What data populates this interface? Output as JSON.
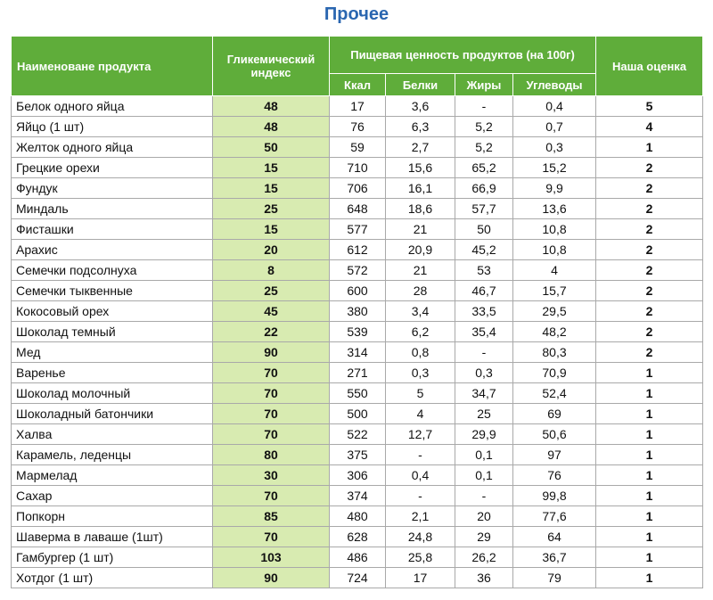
{
  "page": {
    "title": "Прочее"
  },
  "table": {
    "headers": {
      "name": "Наименоване продукта",
      "gi": "Гликемический индекс",
      "nutrition": "Пищевая ценность продуктов (на 100г)",
      "kcal": "Ккал",
      "protein": "Белки",
      "fat": "Жиры",
      "carbs": "Углеводы",
      "rating": "Наша оценка"
    },
    "rows": [
      {
        "name": "Белок одного яйца",
        "gi": "48",
        "kcal": "17",
        "protein": "3,6",
        "fat": "-",
        "carbs": "0,4",
        "rating": "5"
      },
      {
        "name": "Яйцо (1 шт)",
        "gi": "48",
        "kcal": "76",
        "protein": "6,3",
        "fat": "5,2",
        "carbs": "0,7",
        "rating": "4"
      },
      {
        "name": "Желток одного яйца",
        "gi": "50",
        "kcal": "59",
        "protein": "2,7",
        "fat": "5,2",
        "carbs": "0,3",
        "rating": "1"
      },
      {
        "name": "Грецкие орехи",
        "gi": "15",
        "kcal": "710",
        "protein": "15,6",
        "fat": "65,2",
        "carbs": "15,2",
        "rating": "2"
      },
      {
        "name": "Фундук",
        "gi": "15",
        "kcal": "706",
        "protein": "16,1",
        "fat": "66,9",
        "carbs": "9,9",
        "rating": "2"
      },
      {
        "name": "Миндаль",
        "gi": "25",
        "kcal": "648",
        "protein": "18,6",
        "fat": "57,7",
        "carbs": "13,6",
        "rating": "2"
      },
      {
        "name": "Фисташки",
        "gi": "15",
        "kcal": "577",
        "protein": "21",
        "fat": "50",
        "carbs": "10,8",
        "rating": "2"
      },
      {
        "name": "Арахис",
        "gi": "20",
        "kcal": "612",
        "protein": "20,9",
        "fat": "45,2",
        "carbs": "10,8",
        "rating": "2"
      },
      {
        "name": "Семечки подсолнуха",
        "gi": "8",
        "kcal": "572",
        "protein": "21",
        "fat": "53",
        "carbs": "4",
        "rating": "2"
      },
      {
        "name": "Семечки тыквенные",
        "gi": "25",
        "kcal": "600",
        "protein": "28",
        "fat": "46,7",
        "carbs": "15,7",
        "rating": "2"
      },
      {
        "name": "Кокосовый орех",
        "gi": "45",
        "kcal": "380",
        "protein": "3,4",
        "fat": "33,5",
        "carbs": "29,5",
        "rating": "2"
      },
      {
        "name": "Шоколад темный",
        "gi": "22",
        "kcal": "539",
        "protein": "6,2",
        "fat": "35,4",
        "carbs": "48,2",
        "rating": "2"
      },
      {
        "name": "Мед",
        "gi": "90",
        "kcal": "314",
        "protein": "0,8",
        "fat": "-",
        "carbs": "80,3",
        "rating": "2"
      },
      {
        "name": "Варенье",
        "gi": "70",
        "kcal": "271",
        "protein": "0,3",
        "fat": "0,3",
        "carbs": "70,9",
        "rating": "1"
      },
      {
        "name": "Шоколад молочный",
        "gi": "70",
        "kcal": "550",
        "protein": "5",
        "fat": "34,7",
        "carbs": "52,4",
        "rating": "1"
      },
      {
        "name": "Шоколадный батончики",
        "gi": "70",
        "kcal": "500",
        "protein": "4",
        "fat": "25",
        "carbs": "69",
        "rating": "1"
      },
      {
        "name": "Халва",
        "gi": "70",
        "kcal": "522",
        "protein": "12,7",
        "fat": "29,9",
        "carbs": "50,6",
        "rating": "1"
      },
      {
        "name": "Карамель, леденцы",
        "gi": "80",
        "kcal": "375",
        "protein": "-",
        "fat": "0,1",
        "carbs": "97",
        "rating": "1"
      },
      {
        "name": "Мармелад",
        "gi": "30",
        "kcal": "306",
        "protein": "0,4",
        "fat": "0,1",
        "carbs": "76",
        "rating": "1"
      },
      {
        "name": "Сахар",
        "gi": "70",
        "kcal": "374",
        "protein": "-",
        "fat": "-",
        "carbs": "99,8",
        "rating": "1"
      },
      {
        "name": "Попкорн",
        "gi": "85",
        "kcal": "480",
        "protein": "2,1",
        "fat": "20",
        "carbs": "77,6",
        "rating": "1"
      },
      {
        "name": "Шаверма в лаваше (1шт)",
        "gi": "70",
        "kcal": "628",
        "protein": "24,8",
        "fat": "29",
        "carbs": "64",
        "rating": "1"
      },
      {
        "name": "Гамбургер (1 шт)",
        "gi": "103",
        "kcal": "486",
        "protein": "25,8",
        "fat": "26,2",
        "carbs": "36,7",
        "rating": "1"
      },
      {
        "name": "Хотдог (1 шт)",
        "gi": "90",
        "kcal": "724",
        "protein": "17",
        "fat": "36",
        "carbs": "79",
        "rating": "1"
      }
    ]
  },
  "colors": {
    "header_bg": "#5fad3a",
    "gi_cell_bg": "#d8ebb1",
    "title": "#2a66b0",
    "border": "#a9a9a9"
  }
}
